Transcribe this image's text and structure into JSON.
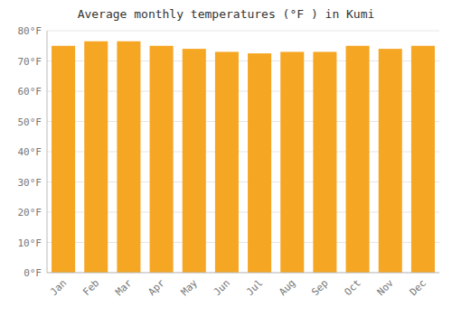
{
  "chart_data": {
    "type": "bar",
    "title": "Average monthly temperatures (°F ) in Kumi",
    "categories": [
      "Jan",
      "Feb",
      "Mar",
      "Apr",
      "May",
      "Jun",
      "Jul",
      "Aug",
      "Sep",
      "Oct",
      "Nov",
      "Dec"
    ],
    "values": [
      75.0,
      76.5,
      76.5,
      75.0,
      74.0,
      73.0,
      72.5,
      73.0,
      73.0,
      75.0,
      74.0,
      75.0
    ],
    "color": "#F5A623",
    "ylim": [
      0,
      80
    ],
    "yticks": [
      {
        "value": 0,
        "label": "0°F"
      },
      {
        "value": 10,
        "label": "10°F"
      },
      {
        "value": 20,
        "label": "20°F"
      },
      {
        "value": 30,
        "label": "30°F"
      },
      {
        "value": 40,
        "label": "40°F"
      },
      {
        "value": 50,
        "label": "50°F"
      },
      {
        "value": 60,
        "label": "60°F"
      },
      {
        "value": 70,
        "label": "70°F"
      },
      {
        "value": 80,
        "label": "80°F"
      }
    ],
    "grid": true
  }
}
